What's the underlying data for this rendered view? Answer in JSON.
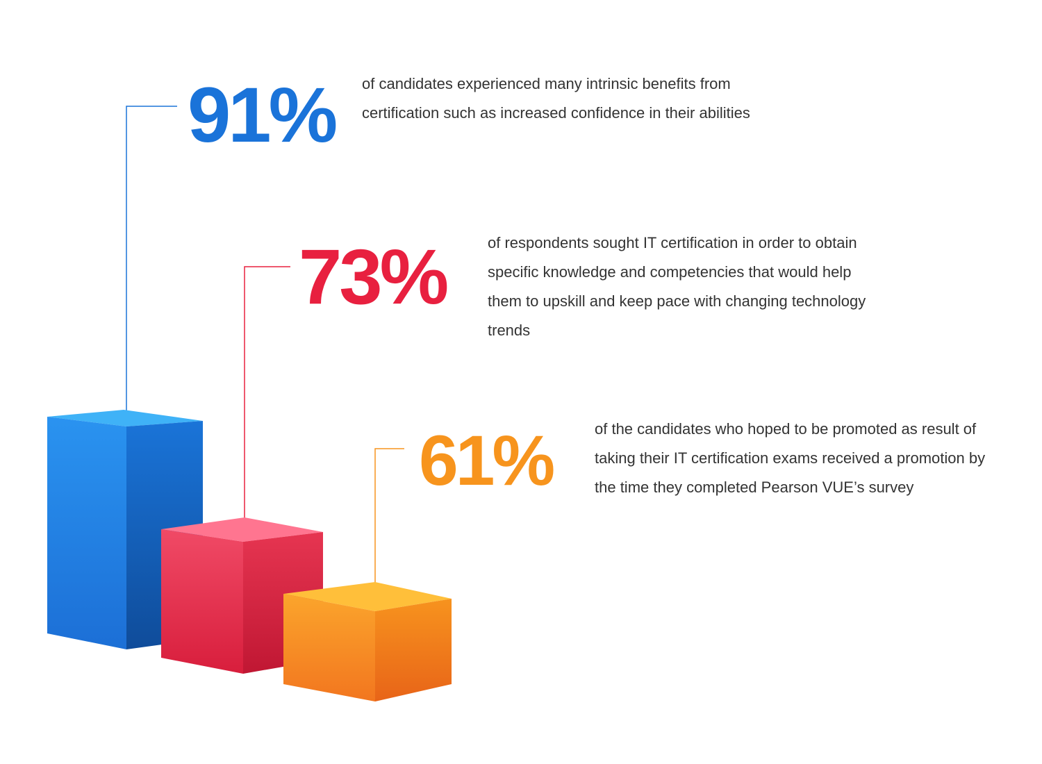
{
  "stats": [
    {
      "value": "91%",
      "text": "of candidates experienced many intrinsic benefits from certification such as increased confidence in their abilities"
    },
    {
      "value": "73%",
      "text": "of respondents sought IT certification in order to obtain specific knowledge and competencies that would help them to upskill and keep pace with changing technology trends"
    },
    {
      "value": "61%",
      "text": "of the candidates who hoped to be promoted as result of taking their IT certification exams received a promotion by the time they completed Pearson VUE’s survey"
    }
  ]
}
